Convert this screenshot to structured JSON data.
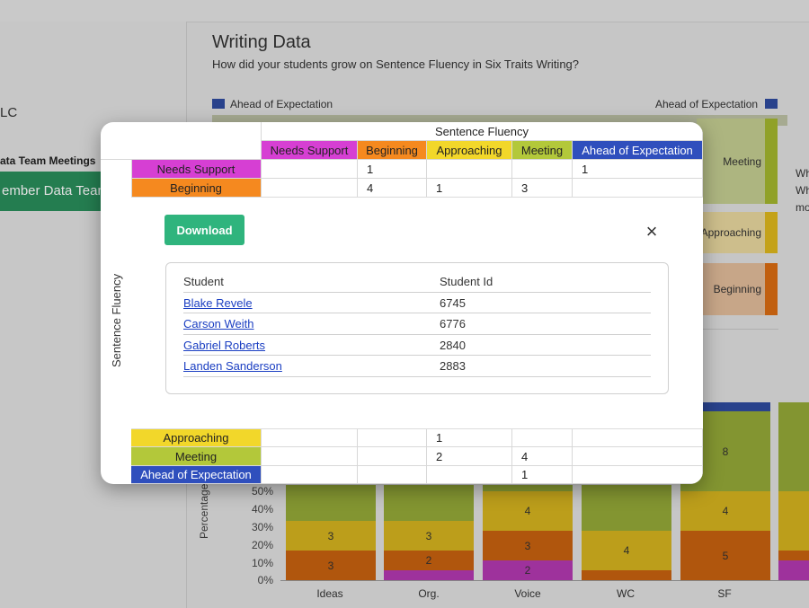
{
  "left": {
    "lc_text": "LC",
    "section_text": "ata Team Meetings",
    "member_button": "ember Data Team"
  },
  "header": {
    "title": "Writing Data",
    "subtitle": "How did your students grow on Sentence Fluency in Six Traits Writing?"
  },
  "sankey": {
    "left_label": "Ahead of Expectation",
    "right_label": "Ahead of Expectation",
    "nodes": [
      "Meeting",
      "Approaching",
      "Beginning"
    ],
    "side_text": [
      "Wh",
      "Wh",
      "mo"
    ]
  },
  "bar_chart": {
    "ylabel": "Percentage of s",
    "yticks": [
      "50%",
      "40%",
      "30%",
      "20%",
      "10%",
      "0%"
    ],
    "categories": [
      "Ideas",
      "Org.",
      "Voice",
      "WC",
      "SF"
    ],
    "labels": {
      "ideas": [
        "3",
        "3"
      ],
      "org": [
        "3",
        "2"
      ],
      "voice": [
        "4",
        "3",
        "2"
      ],
      "wc": [
        "4"
      ],
      "sf": [
        "8",
        "4",
        "5"
      ]
    }
  },
  "pivot": {
    "col_title": "Sentence Fluency",
    "row_title": "Sentence Fluency",
    "columns": [
      "Needs Support",
      "Beginning",
      "Approaching",
      "Meeting",
      "Ahead of Expectation"
    ],
    "rows": [
      {
        "label": "Needs Support",
        "values": [
          "",
          "1",
          "",
          "",
          "1"
        ]
      },
      {
        "label": "Beginning",
        "values": [
          "",
          "4",
          "1",
          "3",
          ""
        ]
      },
      {
        "label": "Approaching",
        "values": [
          "",
          "",
          "1",
          "",
          ""
        ]
      },
      {
        "label": "Meeting",
        "values": [
          "",
          "",
          "2",
          "4",
          ""
        ]
      },
      {
        "label": "Ahead of Expectation",
        "values": [
          "",
          "",
          "",
          "1",
          ""
        ]
      }
    ],
    "colors": {
      "needs_support": "#d63fd3",
      "beginning": "#f5891f",
      "approaching": "#f2d72a",
      "meeting": "#b3c83a",
      "ahead": "#2f4fbd"
    }
  },
  "modal": {
    "download_label": "Download",
    "close_icon": "×",
    "headers": [
      "Student",
      "Student Id"
    ],
    "students": [
      {
        "name": "Blake Revele",
        "id": "6745"
      },
      {
        "name": "Carson Weith",
        "id": "6776"
      },
      {
        "name": "Gabriel Roberts",
        "id": "2840"
      },
      {
        "name": "Landen Sanderson",
        "id": "2883"
      }
    ]
  }
}
